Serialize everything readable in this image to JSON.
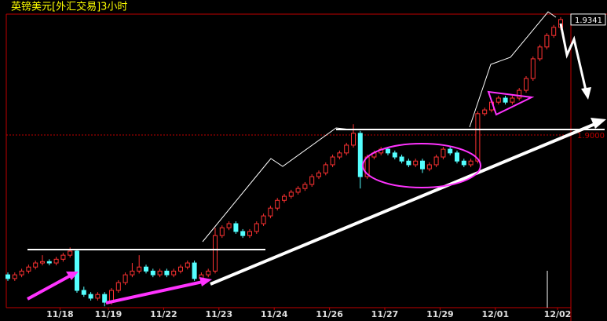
{
  "chart_data": {
    "type": "candlestick",
    "title": "英镑美元[外汇交易]3小时",
    "categories": [
      null,
      null,
      null,
      null,
      null,
      null,
      null,
      null,
      "11/18",
      null,
      null,
      null,
      null,
      null,
      null,
      "11/19",
      null,
      null,
      null,
      null,
      null,
      null,
      null,
      "11/22",
      null,
      null,
      null,
      null,
      null,
      null,
      null,
      "11/23",
      null,
      null,
      null,
      null,
      null,
      null,
      null,
      "11/24",
      null,
      null,
      null,
      null,
      null,
      null,
      null,
      "11/26",
      null,
      null,
      null,
      null,
      null,
      null,
      null,
      "11/27",
      null,
      null,
      null,
      null,
      null,
      null,
      null,
      "11/29",
      null,
      null,
      null,
      null,
      null,
      null,
      null,
      "12/01",
      null,
      null,
      null,
      null,
      null,
      null,
      null,
      null,
      "12/02"
    ],
    "open": [
      1.8587,
      1.8576,
      1.8587,
      1.8598,
      1.861,
      1.8622,
      1.8626,
      1.8622,
      1.8633,
      1.8645,
      1.8657,
      1.8541,
      1.8529,
      1.8518,
      1.8529,
      1.8506,
      1.8541,
      1.8564,
      1.8587,
      1.8598,
      1.861,
      1.8598,
      1.8587,
      1.8598,
      1.8587,
      1.8598,
      1.861,
      1.8622,
      1.8576,
      1.8587,
      1.8598,
      1.8703,
      1.8726,
      1.8738,
      1.8715,
      1.8703,
      1.8715,
      1.8738,
      1.8761,
      1.8784,
      1.8807,
      1.8819,
      1.8831,
      1.8842,
      1.8854,
      1.8877,
      1.8888,
      1.8912,
      1.8935,
      1.8947,
      1.897,
      1.9005,
      1.8877,
      1.8935,
      1.8947,
      1.8958,
      1.8947,
      1.8935,
      1.8923,
      1.8912,
      1.8923,
      1.89,
      1.8912,
      1.8935,
      1.8958,
      1.8947,
      1.8923,
      1.8912,
      1.8923,
      1.9063,
      1.9074,
      1.9097,
      1.9109,
      1.9097,
      1.9109,
      1.9132,
      1.9167,
      1.9225,
      1.926,
      1.9294,
      1.9318
    ],
    "high": [
      1.8594,
      1.8594,
      1.8605,
      1.8617,
      1.8629,
      1.8645,
      1.8633,
      1.864,
      1.8652,
      1.8668,
      1.8664,
      1.8552,
      1.8536,
      1.8536,
      1.8536,
      1.8548,
      1.8571,
      1.8594,
      1.8622,
      1.8645,
      1.8617,
      1.8605,
      1.8605,
      1.8605,
      1.8605,
      1.8617,
      1.8629,
      1.8629,
      1.8594,
      1.8605,
      1.8726,
      1.8733,
      1.8745,
      1.8745,
      1.8722,
      1.8722,
      1.8745,
      1.8768,
      1.8791,
      1.8814,
      1.8826,
      1.8838,
      1.8849,
      1.8861,
      1.8884,
      1.8895,
      1.8919,
      1.8942,
      1.8954,
      1.8977,
      1.9032,
      1.9012,
      1.8942,
      1.8954,
      1.8965,
      1.8965,
      1.8954,
      1.8942,
      1.893,
      1.893,
      1.893,
      1.8919,
      1.8942,
      1.8965,
      1.8965,
      1.8954,
      1.893,
      1.893,
      1.907,
      1.9081,
      1.9104,
      1.9116,
      1.9116,
      1.9116,
      1.9139,
      1.9174,
      1.9232,
      1.9267,
      1.9301,
      1.9325,
      1.9348
    ],
    "low": [
      1.8569,
      1.8569,
      1.858,
      1.8591,
      1.8603,
      1.8615,
      1.8615,
      1.8615,
      1.8626,
      1.8638,
      1.8534,
      1.8522,
      1.8511,
      1.8511,
      1.8494,
      1.8499,
      1.8534,
      1.8557,
      1.858,
      1.8591,
      1.8591,
      1.858,
      1.858,
      1.858,
      1.858,
      1.8591,
      1.8603,
      1.8569,
      1.8569,
      1.858,
      1.8591,
      1.8696,
      1.8719,
      1.8708,
      1.8696,
      1.8696,
      1.8708,
      1.8731,
      1.8754,
      1.8777,
      1.88,
      1.8812,
      1.8824,
      1.8835,
      1.8847,
      1.887,
      1.8881,
      1.8905,
      1.8928,
      1.894,
      1.8963,
      1.8842,
      1.887,
      1.8928,
      1.894,
      1.894,
      1.8928,
      1.8916,
      1.8905,
      1.8905,
      1.8888,
      1.8893,
      1.8905,
      1.8928,
      1.894,
      1.8916,
      1.8905,
      1.8905,
      1.8916,
      1.9056,
      1.9067,
      1.909,
      1.909,
      1.909,
      1.9102,
      1.9125,
      1.916,
      1.9218,
      1.9253,
      1.9287,
      1.9311
    ],
    "close": [
      1.8576,
      1.8587,
      1.8598,
      1.861,
      1.8622,
      1.8626,
      1.8622,
      1.8633,
      1.8645,
      1.8657,
      1.8541,
      1.8529,
      1.8518,
      1.8529,
      1.8506,
      1.8541,
      1.8564,
      1.8587,
      1.8598,
      1.861,
      1.8598,
      1.8587,
      1.8598,
      1.8587,
      1.8598,
      1.861,
      1.8622,
      1.8576,
      1.8587,
      1.8598,
      1.8703,
      1.8726,
      1.8738,
      1.8715,
      1.8703,
      1.8715,
      1.8738,
      1.8761,
      1.8784,
      1.8807,
      1.8819,
      1.8831,
      1.8842,
      1.8854,
      1.8877,
      1.8888,
      1.8912,
      1.8935,
      1.8947,
      1.897,
      1.9005,
      1.8877,
      1.8935,
      1.8947,
      1.8958,
      1.8947,
      1.8935,
      1.8923,
      1.8912,
      1.8923,
      1.89,
      1.8912,
      1.8935,
      1.8958,
      1.8947,
      1.8923,
      1.8912,
      1.8923,
      1.9063,
      1.9074,
      1.9097,
      1.9109,
      1.9097,
      1.9109,
      1.9132,
      1.9167,
      1.9225,
      1.926,
      1.9294,
      1.9318,
      1.9341
    ],
    "up_color": "#ff3232",
    "down_color": "#54ffff",
    "ylim": [
      1.849,
      1.9357
    ],
    "last_price": 1.9341,
    "reference": {
      "value": 1.9,
      "label": "1.9000"
    }
  }
}
